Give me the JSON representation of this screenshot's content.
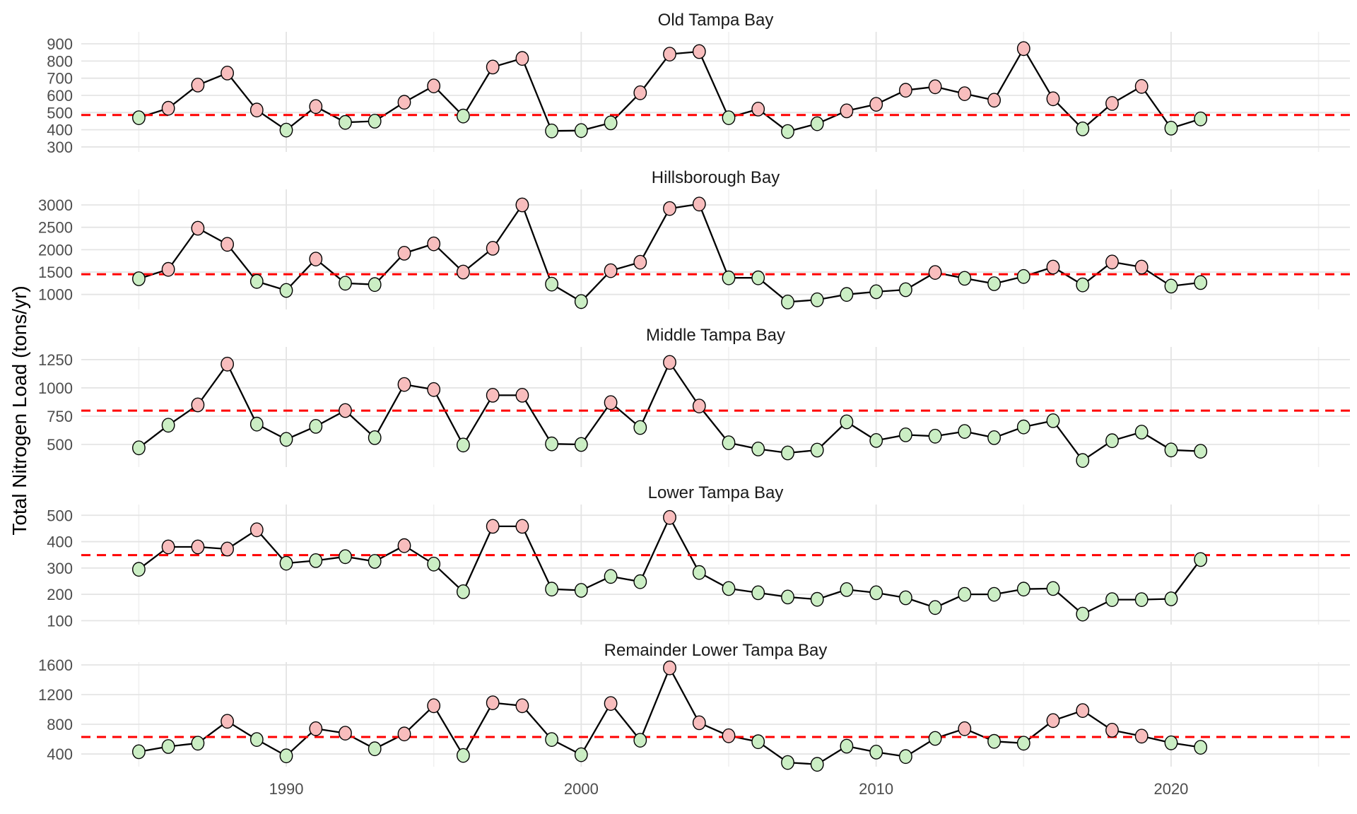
{
  "figure": {
    "y_axis_title": "Total Nitrogen Load (tons/yr)",
    "background": "#FFFFFF"
  },
  "chart_data": {
    "type": "line",
    "title": "",
    "xlabel": "",
    "ylabel": "Total Nitrogen Load (tons/yr)",
    "legend": "none",
    "grid": "on",
    "x_range": [
      1985,
      2021
    ],
    "x_major_ticks": [
      1990,
      2000,
      2010,
      2020
    ],
    "x_minor_ticks": [
      1985,
      1995,
      2005,
      2015,
      2025
    ],
    "point_color_rule": "green fill if value at or below red dashed threshold line, pink fill if above",
    "colors": {
      "point_above_fill": "#F8BDBD",
      "point_below_fill": "#CBEEC4",
      "point_stroke": "#000000",
      "line": "#000000",
      "threshold_line": "#FF0000",
      "grid_major": "#E4E4E4",
      "grid_minor": "#F0F0F0",
      "tick_label": "#4D4D4D",
      "panel_title": "#1A1A1A"
    },
    "years": [
      1985,
      1986,
      1987,
      1988,
      1989,
      1990,
      1991,
      1992,
      1993,
      1994,
      1995,
      1996,
      1997,
      1998,
      1999,
      2000,
      2001,
      2002,
      2003,
      2004,
      2005,
      2006,
      2007,
      2008,
      2009,
      2010,
      2011,
      2012,
      2013,
      2014,
      2015,
      2016,
      2017,
      2018,
      2019,
      2020,
      2021
    ],
    "panels": [
      {
        "title": "Old Tampa Bay",
        "threshold": 486,
        "y_ticks": [
          900,
          800,
          700,
          600,
          500,
          400,
          300
        ],
        "ylim": [
          271,
          970
        ],
        "values": [
          470,
          525,
          660,
          730,
          515,
          398,
          535,
          443,
          450,
          560,
          655,
          480,
          765,
          815,
          393,
          395,
          440,
          615,
          840,
          855,
          470,
          520,
          390,
          435,
          510,
          548,
          630,
          650,
          610,
          572,
          872,
          580,
          405,
          553,
          652,
          409,
          463
        ]
      },
      {
        "title": "Hillsborough Bay",
        "threshold": 1451,
        "y_ticks": [
          3000,
          2500,
          2000,
          1500,
          1000
        ],
        "ylim": [
          663,
          3348
        ],
        "values": [
          1350,
          1560,
          2480,
          2120,
          1290,
          1090,
          1790,
          1250,
          1220,
          1920,
          2130,
          1500,
          2030,
          3000,
          1230,
          840,
          1530,
          1720,
          2920,
          3020,
          1370,
          1370,
          830,
          880,
          1000,
          1060,
          1105,
          1490,
          1360,
          1240,
          1400,
          1610,
          1212,
          1725,
          1610,
          1185,
          1265
        ]
      },
      {
        "title": "Middle Tampa Bay",
        "threshold": 799,
        "y_ticks": [
          1250,
          1000,
          750,
          500
        ],
        "ylim": [
          300,
          1362
        ],
        "values": [
          470,
          670,
          850,
          1210,
          680,
          545,
          660,
          800,
          560,
          1030,
          985,
          495,
          935,
          935,
          505,
          500,
          870,
          650,
          1225,
          840,
          515,
          460,
          425,
          450,
          700,
          535,
          585,
          573,
          615,
          560,
          655,
          710,
          358,
          533,
          609,
          451,
          440
        ]
      },
      {
        "title": "Lower Tampa Bay",
        "threshold": 349,
        "y_ticks": [
          500,
          400,
          300,
          200,
          100
        ],
        "ylim": [
          85,
          541
        ],
        "values": [
          295,
          380,
          380,
          372,
          445,
          318,
          328,
          343,
          325,
          385,
          315,
          210,
          458,
          458,
          220,
          215,
          268,
          248,
          492,
          283,
          222,
          206,
          190,
          181,
          218,
          206,
          187,
          150,
          200,
          200,
          220,
          222,
          125,
          180,
          180,
          183,
          332
        ]
      },
      {
        "title": "Remainder Lower Tampa Bay",
        "threshold": 629,
        "y_ticks": [
          1600,
          1200,
          800,
          400
        ],
        "ylim": [
          229,
          1638
        ],
        "values": [
          430,
          500,
          545,
          840,
          595,
          375,
          740,
          680,
          470,
          670,
          1050,
          380,
          1090,
          1050,
          595,
          390,
          1080,
          585,
          1560,
          820,
          645,
          565,
          285,
          260,
          505,
          425,
          365,
          610,
          740,
          570,
          545,
          850,
          985,
          720,
          640,
          550,
          490
        ]
      }
    ]
  }
}
